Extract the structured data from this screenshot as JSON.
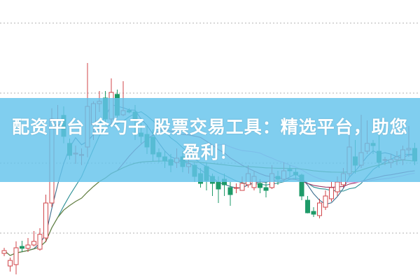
{
  "banner": {
    "text": "配资平台 金勺子 股票交易工具：精选平台，助您盈利！"
  },
  "colors": {
    "up": "#d0454a",
    "down": "#1e9a68",
    "grid": "#b0b0b0",
    "banner": "#64c3ec"
  },
  "chart_data": {
    "type": "candlestick",
    "title": "",
    "xlabel": "",
    "ylabel": "",
    "grid": true,
    "ylim": [
      0,
      100
    ],
    "moving_averages": [
      {
        "window": 5,
        "color": "#3b6e8f"
      },
      {
        "window": 10,
        "color": "#2c8f95"
      },
      {
        "window": 20,
        "color": "#9a3a6a"
      },
      {
        "window": 30,
        "color": "#e3a0df"
      },
      {
        "window": 60,
        "color": "#5a8a3a"
      }
    ],
    "ohlc": [
      [
        9.5,
        10.5,
        11.5,
        8.5
      ],
      [
        5,
        7,
        8,
        3
      ],
      [
        5.5,
        11.5,
        13.8,
        2
      ],
      [
        12,
        11.3,
        14,
        10
      ],
      [
        11.3,
        12.5,
        15,
        10
      ],
      [
        12.5,
        13.8,
        17.5,
        12
      ],
      [
        11,
        16.3,
        18.5,
        10.5
      ],
      [
        15,
        27.5,
        30.5,
        13.5
      ],
      [
        27.5,
        57.5,
        61.3,
        26
      ],
      [
        55.5,
        55.5,
        62.5,
        52.5
      ],
      [
        58.8,
        51.3,
        62,
        48.8
      ],
      [
        48.8,
        44.5,
        50.5,
        43
      ],
      [
        45,
        45.3,
        48,
        41.5
      ],
      [
        44.5,
        44.8,
        47,
        41
      ],
      [
        47.5,
        62,
        77.5,
        43.8
      ],
      [
        55.5,
        63,
        63.8,
        50
      ],
      [
        63,
        63.8,
        67.5,
        60
      ],
      [
        65,
        57.5,
        67.5,
        56.3
      ],
      [
        57.5,
        67,
        72,
        55.5
      ],
      [
        66.3,
        58.8,
        68,
        58
      ],
      [
        59,
        60.5,
        71,
        58.5
      ],
      [
        60.5,
        60,
        61.3,
        59.5
      ],
      [
        60,
        57,
        62.5,
        50
      ],
      [
        52.5,
        51.3,
        56,
        48.8
      ],
      [
        52,
        47.5,
        55,
        45
      ],
      [
        51,
        45,
        53.8,
        42.5
      ],
      [
        45.5,
        44,
        47,
        42
      ],
      [
        44,
        42.5,
        46,
        40
      ],
      [
        43,
        41,
        45,
        38.5
      ],
      [
        42,
        43.5,
        47,
        40
      ],
      [
        44,
        40.5,
        46,
        38.5
      ],
      [
        40.5,
        41.5,
        45,
        38
      ],
      [
        41,
        37,
        42,
        35
      ],
      [
        38,
        34.5,
        40,
        33
      ],
      [
        40.5,
        35.5,
        42,
        32
      ],
      [
        37,
        34.5,
        38,
        30
      ],
      [
        35,
        32.5,
        37,
        27.5
      ],
      [
        36,
        34,
        38,
        30
      ],
      [
        33,
        30.5,
        35,
        26.5
      ],
      [
        33,
        33,
        34.5,
        31
      ],
      [
        32,
        34.5,
        37,
        32
      ],
      [
        34,
        38,
        41,
        33
      ],
      [
        33,
        37,
        39,
        32
      ],
      [
        34.5,
        33,
        36,
        31
      ],
      [
        33,
        32,
        35,
        29.5
      ],
      [
        33,
        38,
        41,
        32.5
      ],
      [
        37,
        36,
        39,
        34
      ],
      [
        36,
        39,
        42,
        35
      ],
      [
        39.5,
        39,
        41,
        37
      ],
      [
        38.5,
        37.5,
        40,
        36
      ],
      [
        37.5,
        30,
        38,
        28.5
      ],
      [
        28.5,
        24,
        30,
        23.8
      ],
      [
        24.5,
        23.5,
        26,
        22.5
      ],
      [
        23,
        27.5,
        29,
        22
      ],
      [
        26,
        30,
        32,
        25
      ],
      [
        29,
        33,
        35,
        28
      ],
      [
        31.5,
        35,
        37,
        30
      ],
      [
        34,
        38,
        40,
        33
      ],
      [
        38,
        47.5,
        52,
        37
      ],
      [
        44,
        41,
        50,
        38
      ],
      [
        41,
        45.5,
        59,
        40
      ],
      [
        46,
        48.8,
        57,
        45
      ],
      [
        48.8,
        48,
        50,
        45
      ],
      [
        46,
        42,
        54,
        40
      ],
      [
        43,
        43,
        44,
        41
      ],
      [
        42,
        43,
        45,
        40
      ],
      [
        43,
        44,
        46,
        41
      ],
      [
        43,
        46.5,
        48,
        41
      ],
      [
        46.5,
        47,
        55,
        44
      ],
      [
        47,
        42.5,
        49,
        41
      ]
    ],
    "ohlc_fields": [
      "open",
      "close",
      "high",
      "low"
    ]
  }
}
